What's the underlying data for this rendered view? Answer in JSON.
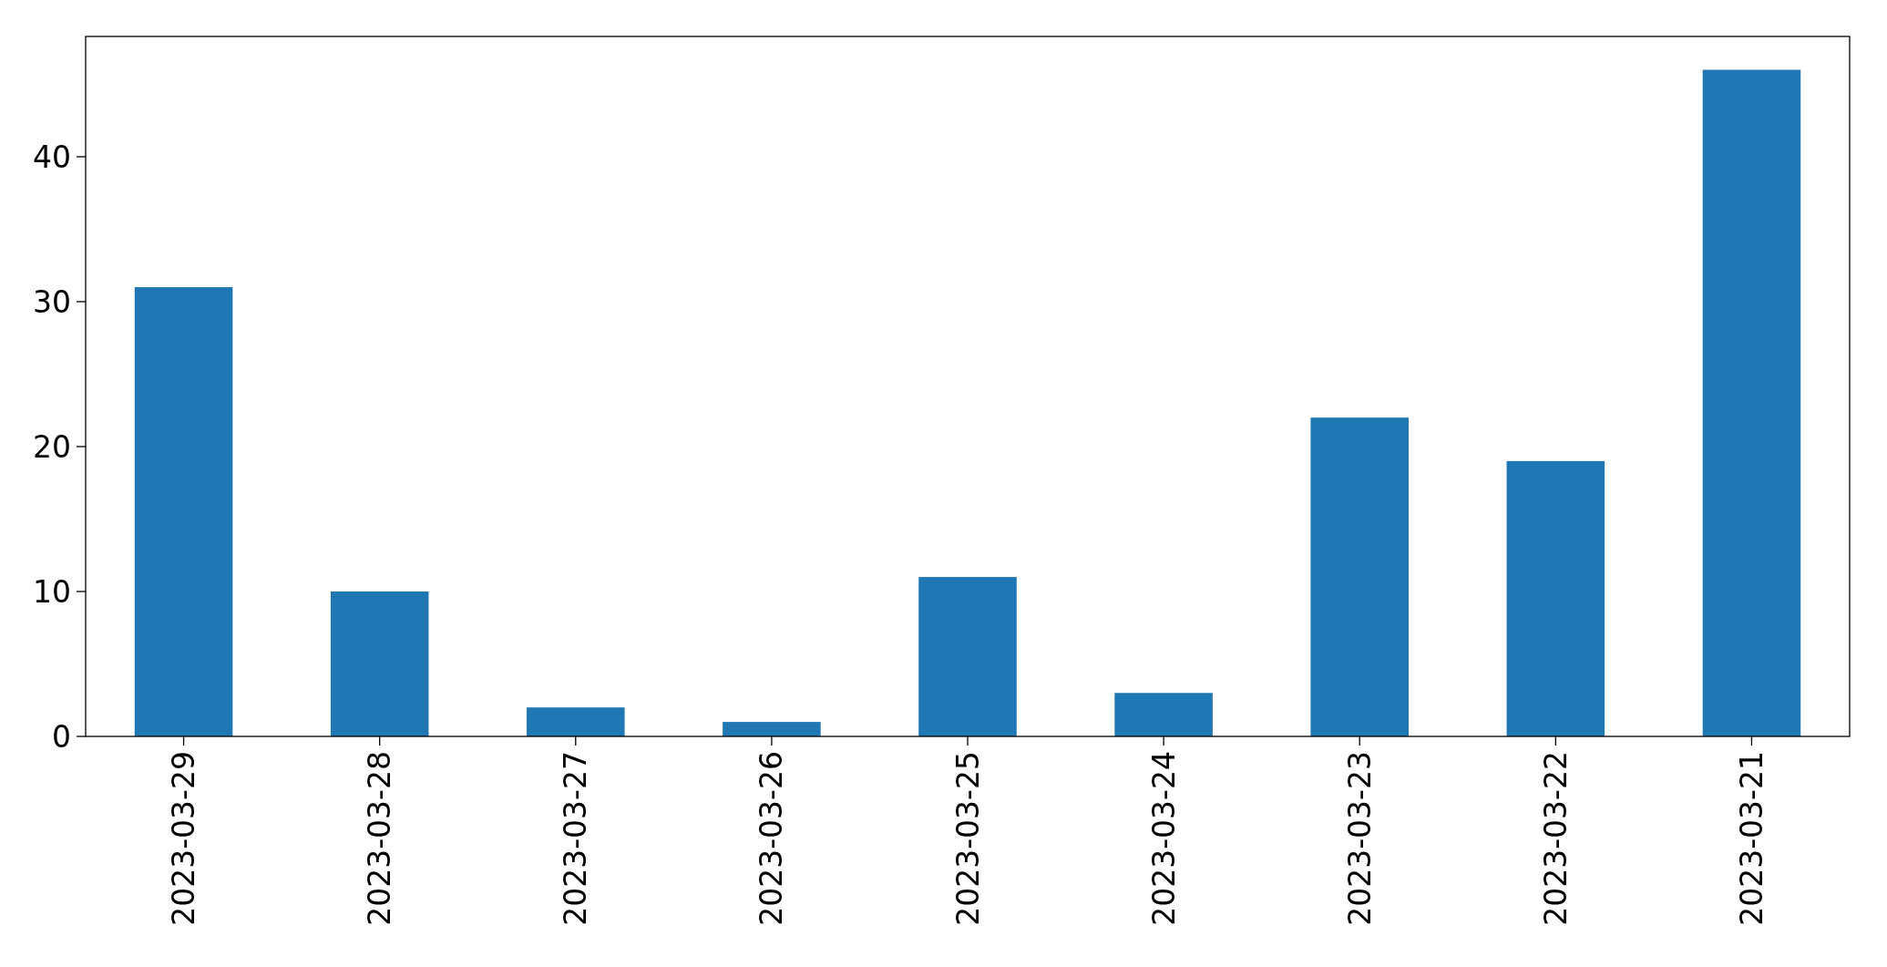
{
  "chart_data": {
    "type": "bar",
    "categories": [
      "2023-03-29",
      "2023-03-28",
      "2023-03-27",
      "2023-03-26",
      "2023-03-25",
      "2023-03-24",
      "2023-03-23",
      "2023-03-22",
      "2023-03-21"
    ],
    "values": [
      31,
      10,
      2,
      1,
      11,
      3,
      22,
      19,
      46
    ],
    "color": "#1f77b4",
    "ylim": [
      0,
      48.3
    ],
    "yticks": [
      0,
      10,
      20,
      30,
      40
    ],
    "grid": false
  }
}
